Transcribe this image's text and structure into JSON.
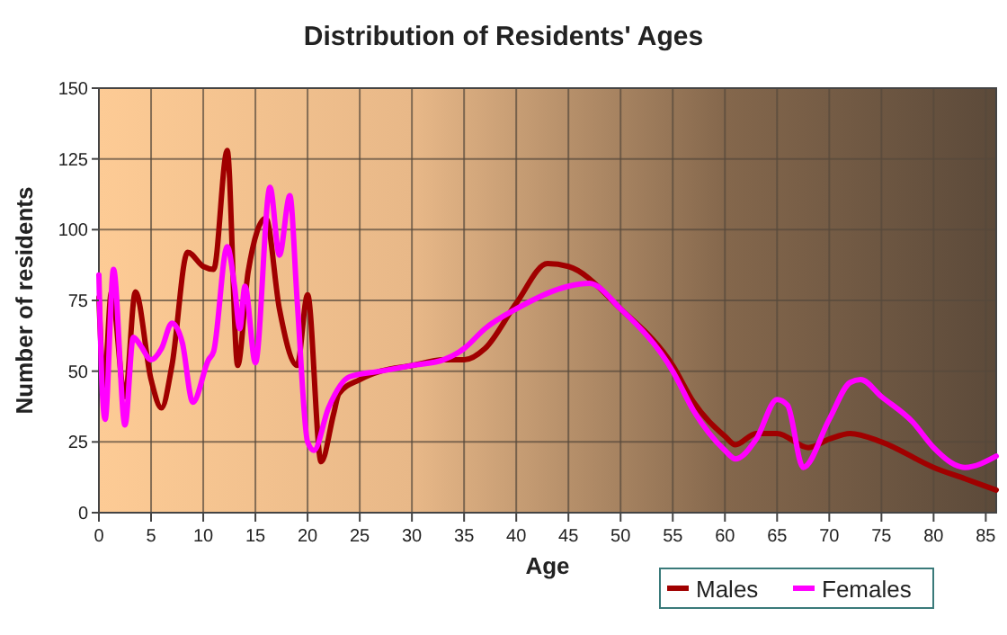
{
  "chart_data": {
    "type": "line",
    "title": "Distribution of Residents' Ages",
    "xlabel": "Age",
    "ylabel": "Number of residents",
    "xlim": [
      0,
      86
    ],
    "ylim": [
      0,
      150
    ],
    "xticks": [
      0,
      5,
      10,
      15,
      20,
      25,
      30,
      35,
      40,
      45,
      50,
      55,
      60,
      65,
      70,
      75,
      80,
      85
    ],
    "yticks": [
      0,
      25,
      50,
      75,
      100,
      125,
      150
    ],
    "grid": true,
    "legend": "bottom",
    "marker": "none",
    "line_style": "solid",
    "series": [
      {
        "name": "Males",
        "color": "#a00000",
        "x": [
          0,
          0.5,
          1.2,
          2.5,
          3.5,
          5,
          6,
          7,
          8.5,
          10,
          11,
          12.3,
          13.3,
          14.3,
          16,
          17.3,
          19,
          20,
          21.3,
          22.5,
          23,
          25,
          27,
          30,
          33,
          35,
          37,
          40,
          43,
          45,
          50,
          55,
          57,
          60,
          61,
          63,
          65,
          68,
          70,
          72,
          75,
          80,
          83,
          86
        ],
        "values": [
          76,
          45,
          78,
          41,
          78,
          47,
          37,
          52,
          92,
          87,
          86,
          128,
          52,
          85,
          104,
          72,
          52,
          77,
          18,
          35,
          42,
          47,
          50,
          52,
          54,
          54,
          58,
          74,
          88,
          87,
          72,
          52,
          39,
          27,
          24,
          28,
          28,
          23,
          26,
          28,
          25,
          16,
          12,
          8
        ]
      },
      {
        "name": "Females",
        "color": "#ff00ff",
        "x": [
          0,
          0.3,
          0.6,
          1.4,
          2.5,
          3.3,
          4,
          5,
          6,
          7,
          8,
          9,
          10.5,
          11,
          12.3,
          13,
          13.5,
          14,
          15,
          16.4,
          17.3,
          18.3,
          19,
          20,
          20.6,
          22,
          24,
          27,
          30,
          33,
          35,
          37,
          40,
          45,
          47,
          50,
          55,
          57,
          60,
          61,
          63,
          65,
          66,
          67.5,
          70,
          72,
          73,
          75,
          78,
          80,
          82,
          83,
          86
        ],
        "values": [
          84,
          45,
          33,
          86,
          31,
          62,
          59,
          54,
          58,
          67,
          60,
          39,
          54,
          57,
          94,
          80,
          65,
          80,
          53,
          115,
          91,
          112,
          75,
          25,
          22,
          37,
          48,
          50,
          52,
          54,
          58,
          65,
          72,
          80,
          81,
          72,
          50,
          36,
          22,
          19,
          26,
          40,
          38,
          16,
          33,
          46,
          47,
          41,
          32,
          23,
          17,
          16,
          20
        ]
      }
    ]
  }
}
